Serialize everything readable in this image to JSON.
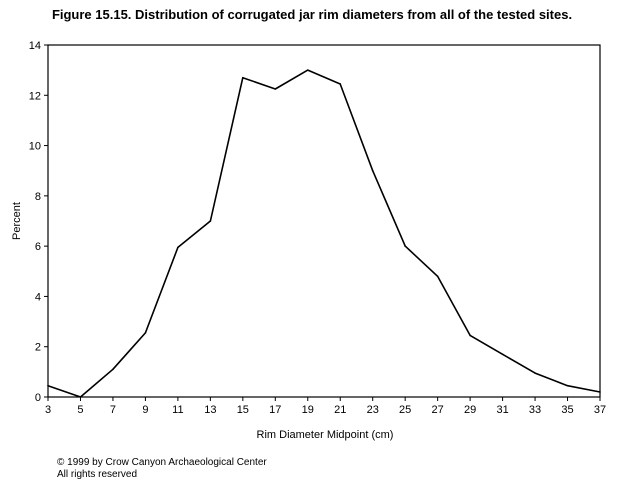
{
  "chart_data": {
    "type": "line",
    "title": "Figure 15.15.  Distribution of corrugated jar rim diameters from all of the tested sites.",
    "xlabel": "Rim Diameter Midpoint (cm)",
    "ylabel": "Percent",
    "x": [
      3,
      5,
      7,
      9,
      11,
      13,
      15,
      17,
      19,
      21,
      23,
      25,
      27,
      29,
      31,
      33,
      35,
      37
    ],
    "series": [
      {
        "values": [
          0.45,
          0.0,
          1.1,
          2.55,
          5.95,
          7.0,
          12.7,
          12.25,
          13.0,
          12.45,
          9.0,
          6.0,
          4.8,
          2.45,
          1.7,
          0.95,
          0.45,
          0.2
        ]
      }
    ],
    "xlim": [
      3,
      37
    ],
    "ylim": [
      0,
      14
    ],
    "xticks": [
      3,
      5,
      7,
      9,
      11,
      13,
      15,
      17,
      19,
      21,
      23,
      25,
      27,
      29,
      31,
      33,
      35,
      37
    ],
    "yticks": [
      0,
      2,
      4,
      6,
      8,
      10,
      12,
      14
    ],
    "grid": false,
    "legend": "none"
  },
  "footer": {
    "copyright_line1": "© 1999 by Crow Canyon Archaeological Center",
    "copyright_line2": "All rights reserved"
  }
}
